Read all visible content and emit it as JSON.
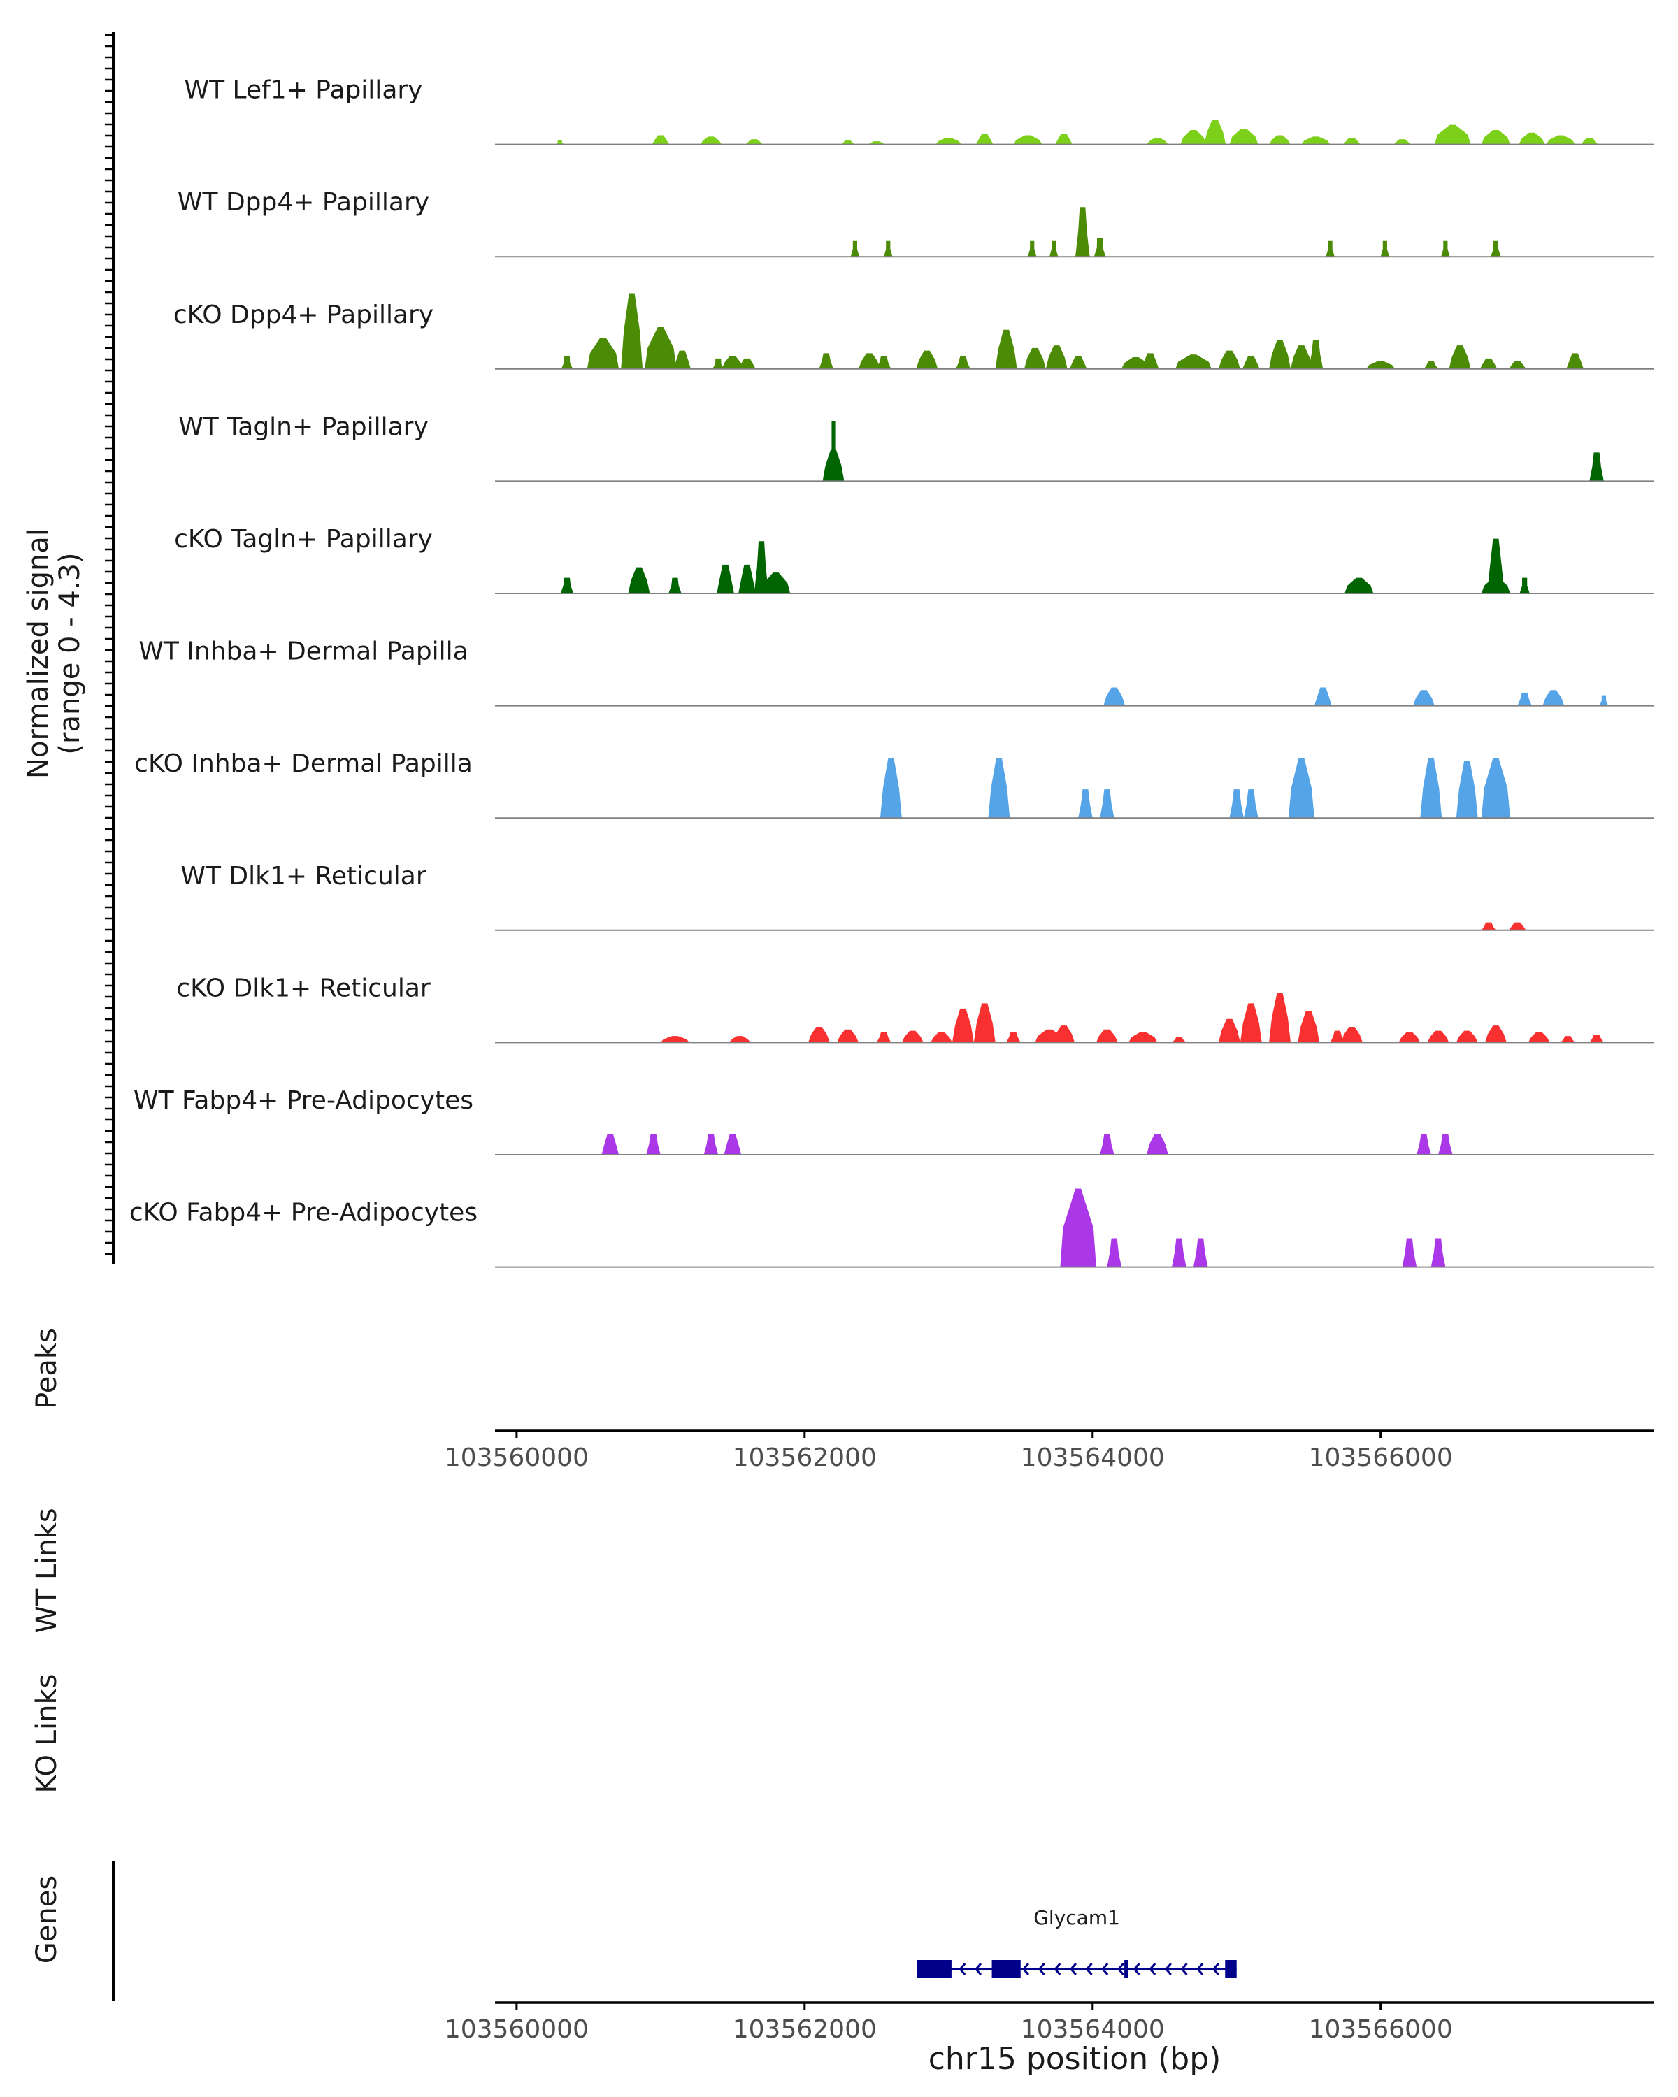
{
  "chart_data": {
    "type": "area",
    "title": "",
    "chromosome": "chr15",
    "xlabel": "chr15 position (bp)",
    "ylabel": "Normalized signal",
    "ylabel_range": "(range 0 - 4.3)",
    "xlim": [
      103559850,
      103567900
    ],
    "ylim": [
      0,
      4.3
    ],
    "x_ticks": [
      103560000,
      103562000,
      103564000,
      103566000
    ],
    "x_tick_labels": [
      "103560000",
      "103562000",
      "103564000",
      "103566000"
    ],
    "tracks": [
      {
        "name": "WT Lef1+ Papillary",
        "color": "#7CD01A",
        "peaks": [
          [
            103560300,
            60,
            0.15
          ],
          [
            103561000,
            120,
            0.35
          ],
          [
            103561350,
            150,
            0.3
          ],
          [
            103561650,
            120,
            0.2
          ],
          [
            103562300,
            100,
            0.15
          ],
          [
            103562500,
            120,
            0.12
          ],
          [
            103563000,
            180,
            0.25
          ],
          [
            103563250,
            120,
            0.4
          ],
          [
            103563550,
            200,
            0.35
          ],
          [
            103563800,
            120,
            0.4
          ],
          [
            103564450,
            150,
            0.25
          ],
          [
            103564700,
            180,
            0.55
          ],
          [
            103564850,
            150,
            0.95
          ],
          [
            103565050,
            200,
            0.6
          ],
          [
            103565300,
            150,
            0.35
          ],
          [
            103565550,
            200,
            0.3
          ],
          [
            103565800,
            120,
            0.25
          ],
          [
            103566150,
            120,
            0.2
          ],
          [
            103566500,
            250,
            0.75
          ],
          [
            103566800,
            200,
            0.55
          ],
          [
            103567050,
            180,
            0.45
          ],
          [
            103567250,
            200,
            0.35
          ],
          [
            103567450,
            120,
            0.25
          ]
        ]
      },
      {
        "name": "WT Dpp4+ Papillary",
        "color": "#4C8B06",
        "peaks": [
          [
            103562350,
            60,
            0.6
          ],
          [
            103562580,
            60,
            0.6
          ],
          [
            103563580,
            60,
            0.6
          ],
          [
            103563730,
            60,
            0.6
          ],
          [
            103563930,
            100,
            1.9
          ],
          [
            103564050,
            80,
            0.7
          ],
          [
            103565650,
            60,
            0.6
          ],
          [
            103566030,
            60,
            0.6
          ],
          [
            103566450,
            60,
            0.6
          ],
          [
            103566800,
            70,
            0.6
          ]
        ]
      },
      {
        "name": "cKO Dpp4+ Papillary",
        "color": "#4C8B06",
        "peaks": [
          [
            103560350,
            80,
            0.5
          ],
          [
            103560600,
            220,
            1.2
          ],
          [
            103560800,
            150,
            2.9
          ],
          [
            103561000,
            220,
            1.6
          ],
          [
            103561150,
            120,
            0.7
          ],
          [
            103561400,
            80,
            0.4
          ],
          [
            103561500,
            150,
            0.5
          ],
          [
            103561600,
            120,
            0.4
          ],
          [
            103562150,
            100,
            0.6
          ],
          [
            103562450,
            150,
            0.6
          ],
          [
            103562550,
            100,
            0.5
          ],
          [
            103562850,
            150,
            0.7
          ],
          [
            103563100,
            100,
            0.5
          ],
          [
            103563400,
            150,
            1.5
          ],
          [
            103563600,
            150,
            0.8
          ],
          [
            103563750,
            150,
            0.9
          ],
          [
            103563900,
            120,
            0.5
          ],
          [
            103564300,
            200,
            0.45
          ],
          [
            103564400,
            120,
            0.6
          ],
          [
            103564700,
            250,
            0.55
          ],
          [
            103564950,
            150,
            0.7
          ],
          [
            103565100,
            120,
            0.5
          ],
          [
            103565300,
            150,
            1.1
          ],
          [
            103565450,
            150,
            0.9
          ],
          [
            103565550,
            100,
            1.1
          ],
          [
            103566000,
            200,
            0.3
          ],
          [
            103566350,
            100,
            0.3
          ],
          [
            103566550,
            150,
            0.9
          ],
          [
            103566750,
            120,
            0.4
          ],
          [
            103566950,
            120,
            0.3
          ],
          [
            103567350,
            120,
            0.6
          ]
        ]
      },
      {
        "name": "WT Tagln+ Papillary",
        "color": "#006400",
        "peaks": [
          [
            103562200,
            150,
            1.2
          ],
          [
            103562200,
            50,
            2.3
          ],
          [
            103567500,
            100,
            1.1
          ]
        ]
      },
      {
        "name": "cKO Tagln+ Papillary",
        "color": "#006400",
        "peaks": [
          [
            103560350,
            90,
            0.6
          ],
          [
            103560850,
            150,
            1.0
          ],
          [
            103561100,
            90,
            0.6
          ],
          [
            103561450,
            120,
            1.1
          ],
          [
            103561600,
            120,
            1.1
          ],
          [
            103561700,
            100,
            2.0
          ],
          [
            103561800,
            200,
            0.8
          ],
          [
            103565850,
            200,
            0.6
          ],
          [
            103566800,
            120,
            2.1
          ],
          [
            103566800,
            200,
            0.6
          ],
          [
            103567000,
            70,
            0.6
          ]
        ]
      },
      {
        "name": "WT Inhba+ Dermal Papilla",
        "color": "#56A4E8",
        "peaks": [
          [
            103564150,
            150,
            0.7
          ],
          [
            103565600,
            120,
            0.7
          ],
          [
            103566300,
            150,
            0.6
          ],
          [
            103567000,
            100,
            0.5
          ],
          [
            103567200,
            150,
            0.6
          ],
          [
            103567550,
            60,
            0.4
          ]
        ]
      },
      {
        "name": "cKO Inhba+ Dermal Papilla",
        "color": "#56A4E8",
        "peaks": [
          [
            103562600,
            150,
            2.3
          ],
          [
            103563350,
            150,
            2.3
          ],
          [
            103563950,
            100,
            1.1
          ],
          [
            103564100,
            100,
            1.1
          ],
          [
            103565000,
            100,
            1.1
          ],
          [
            103565100,
            100,
            1.1
          ],
          [
            103565450,
            180,
            2.3
          ],
          [
            103566350,
            150,
            2.3
          ],
          [
            103566600,
            150,
            2.2
          ],
          [
            103566800,
            200,
            2.3
          ]
        ]
      },
      {
        "name": "WT Dlk1+ Reticular",
        "color": "#F8302F",
        "peaks": [
          [
            103566750,
            100,
            0.3
          ],
          [
            103566950,
            120,
            0.3
          ]
        ]
      },
      {
        "name": "cKO Dlk1+ Reticular",
        "color": "#F8302F",
        "peaks": [
          [
            103561100,
            200,
            0.25
          ],
          [
            103561550,
            150,
            0.25
          ],
          [
            103562100,
            150,
            0.6
          ],
          [
            103562300,
            150,
            0.5
          ],
          [
            103562550,
            100,
            0.4
          ],
          [
            103562750,
            150,
            0.45
          ],
          [
            103562950,
            150,
            0.4
          ],
          [
            103563100,
            150,
            1.3
          ],
          [
            103563250,
            150,
            1.5
          ],
          [
            103563450,
            100,
            0.4
          ],
          [
            103563700,
            200,
            0.5
          ],
          [
            103563800,
            150,
            0.65
          ],
          [
            103564100,
            150,
            0.5
          ],
          [
            103564350,
            200,
            0.4
          ],
          [
            103564600,
            100,
            0.2
          ],
          [
            103564950,
            150,
            0.9
          ],
          [
            103565100,
            150,
            1.5
          ],
          [
            103565300,
            150,
            1.9
          ],
          [
            103565500,
            150,
            1.2
          ],
          [
            103565700,
            100,
            0.45
          ],
          [
            103565800,
            150,
            0.6
          ],
          [
            103566200,
            150,
            0.4
          ],
          [
            103566400,
            150,
            0.45
          ],
          [
            103566600,
            150,
            0.45
          ],
          [
            103566800,
            150,
            0.65
          ],
          [
            103567100,
            150,
            0.4
          ],
          [
            103567300,
            100,
            0.25
          ],
          [
            103567500,
            100,
            0.3
          ]
        ]
      },
      {
        "name": "WT Fabp4+ Pre-Adipocytes",
        "color": "#AA37E8",
        "peaks": [
          [
            103560650,
            120,
            0.8
          ],
          [
            103560950,
            100,
            0.8
          ],
          [
            103561350,
            100,
            0.8
          ],
          [
            103561500,
            120,
            0.8
          ],
          [
            103564100,
            100,
            0.8
          ],
          [
            103564450,
            150,
            0.8
          ],
          [
            103566300,
            100,
            0.8
          ],
          [
            103566450,
            100,
            0.8
          ]
        ]
      },
      {
        "name": "cKO Fabp4+ Pre-Adipocytes",
        "color": "#AA37E8",
        "peaks": [
          [
            103563900,
            250,
            3.0
          ],
          [
            103564150,
            100,
            1.1
          ],
          [
            103564600,
            100,
            1.1
          ],
          [
            103564750,
            100,
            1.1
          ],
          [
            103566200,
            100,
            1.1
          ],
          [
            103566400,
            100,
            1.1
          ]
        ]
      }
    ],
    "panels": [
      {
        "name": "Peaks",
        "label": "Peaks"
      },
      {
        "name": "WT Links",
        "label": "WT Links"
      },
      {
        "name": "KO Links",
        "label": "KO Links"
      },
      {
        "name": "Genes",
        "label": "Genes"
      }
    ],
    "gene": {
      "name": "Glycam1",
      "start": 103562780,
      "end": 103565000,
      "strand": "-",
      "color": "#00008B",
      "exons": [
        [
          103562780,
          103563020
        ],
        [
          103563300,
          103563500
        ],
        [
          103564920,
          103565000
        ]
      ]
    }
  }
}
